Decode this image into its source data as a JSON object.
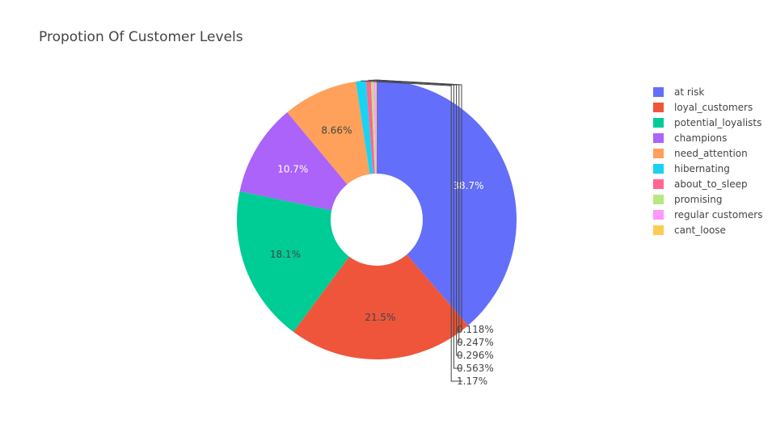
{
  "chart_data": {
    "type": "pie",
    "hole": true,
    "title": "Propotion Of Customer Levels",
    "legend_position": "right",
    "slices": [
      {
        "label": "at risk",
        "percent": 38.7,
        "text": "38.7%",
        "color": "#636efa"
      },
      {
        "label": "loyal_customers",
        "percent": 21.5,
        "text": "21.5%",
        "color": "#ef553b"
      },
      {
        "label": "potential_loyalists",
        "percent": 18.1,
        "text": "18.1%",
        "color": "#00cc96"
      },
      {
        "label": "champions",
        "percent": 10.7,
        "text": "10.7%",
        "color": "#ab63fa"
      },
      {
        "label": "need_attention",
        "percent": 8.66,
        "text": "8.66%",
        "color": "#ffa15a"
      },
      {
        "label": "hibernating",
        "percent": 1.17,
        "text": "1.17%",
        "color": "#19d3f3"
      },
      {
        "label": "about_to_sleep",
        "percent": 0.563,
        "text": "0.563%",
        "color": "#ff6692"
      },
      {
        "label": "promising",
        "percent": 0.296,
        "text": "0.296%",
        "color": "#b6e880"
      },
      {
        "label": "regular customers",
        "percent": 0.247,
        "text": "0.247%",
        "color": "#ff97ff"
      },
      {
        "label": "cant_loose",
        "percent": 0.118,
        "text": "0.118%",
        "color": "#fecb52"
      }
    ]
  }
}
